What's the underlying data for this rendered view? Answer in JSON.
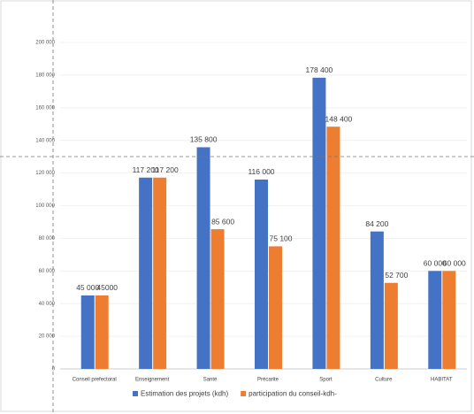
{
  "chart_data": {
    "type": "bar",
    "categories": [
      "Conseil prefectoral",
      "Enseignement",
      "Santé",
      "Précarite",
      "Sport",
      "Culture",
      "HABITAT"
    ],
    "series": [
      {
        "name": "Estimation des projets (kdh)",
        "color": "#4472c4",
        "values": [
          45000,
          117200,
          135800,
          116000,
          178400,
          84200,
          60000
        ],
        "value_labels": [
          "45 000",
          "117 200",
          "135 800",
          "116 000",
          "178 400",
          "84 200",
          "60 000"
        ]
      },
      {
        "name": "participation du conseil-kdh-",
        "color": "#ed7d31",
        "values": [
          45000,
          117200,
          85600,
          75100,
          148400,
          52700,
          60000
        ],
        "value_labels": [
          "45000",
          "117 200",
          "85 600",
          "75 100",
          "148 400",
          "52 700",
          "60 000"
        ]
      }
    ],
    "ylim": [
      0,
      200000
    ],
    "yticks": [
      {
        "value": 0,
        "label": "0"
      },
      {
        "value": 20000,
        "label": "20 000"
      },
      {
        "value": 40000,
        "label": "40 000"
      },
      {
        "value": 60000,
        "label": "60 000"
      },
      {
        "value": 80000,
        "label": "80 000"
      },
      {
        "value": 100000,
        "label": "100 000"
      },
      {
        "value": 120000,
        "label": "120 000"
      },
      {
        "value": 140000,
        "label": "140 000"
      },
      {
        "value": 160000,
        "label": "160 000"
      },
      {
        "value": 180000,
        "label": "180 000"
      },
      {
        "value": 200000,
        "label": "200 000"
      }
    ],
    "grid": true
  }
}
